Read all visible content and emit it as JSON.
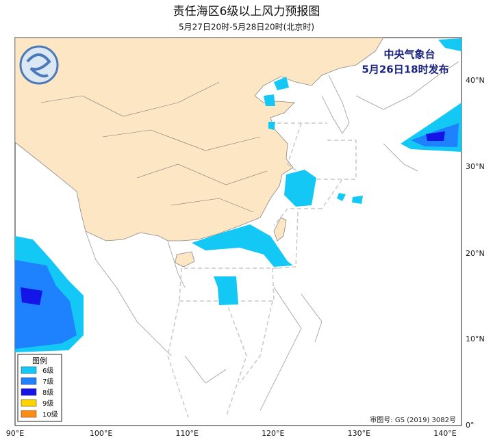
{
  "header": {
    "title": "责任海区6级以上风力预报图",
    "subtitle": "5月27日20时-5月28日20时(北京时)"
  },
  "issuer": {
    "agency": "中央气象台",
    "time": "5月26日18时发布"
  },
  "axes": {
    "x_labels": [
      "90°E",
      "100°E",
      "110°E",
      "120°E",
      "130°E",
      "140°E"
    ],
    "y_labels": [
      "0°",
      "10°N",
      "20°N",
      "30°N",
      "40°N"
    ]
  },
  "legend": {
    "title": "图例",
    "items": [
      {
        "label": "6级",
        "color": "#14c8f5"
      },
      {
        "label": "7级",
        "color": "#1e82ff"
      },
      {
        "label": "8级",
        "color": "#1414e6"
      },
      {
        "label": "9级",
        "color": "#ffd200"
      },
      {
        "label": "10级",
        "color": "#ff8c14"
      }
    ]
  },
  "approval": "审图号: GS (2019) 3082号"
}
